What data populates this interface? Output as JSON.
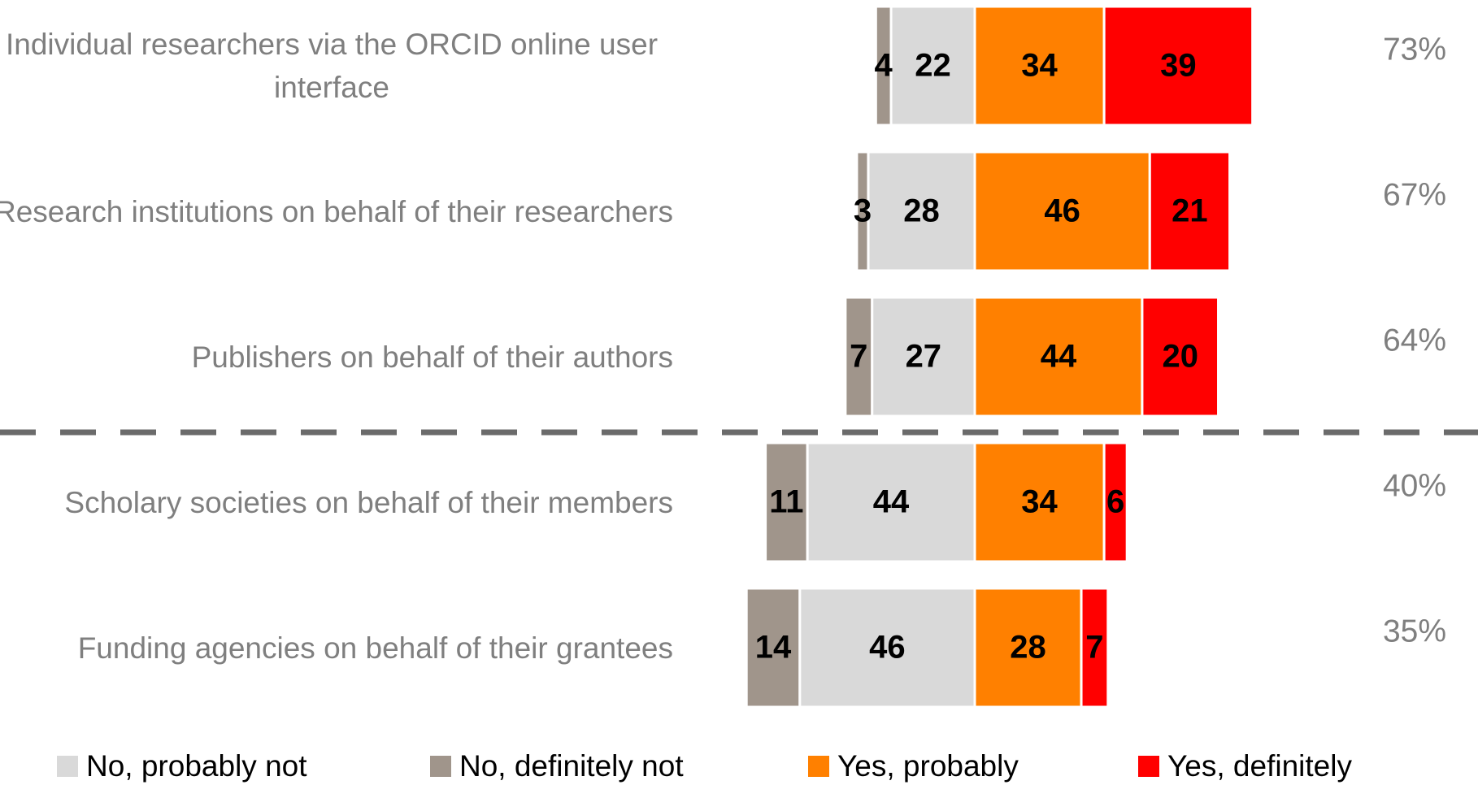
{
  "chart_data": {
    "type": "diverging-bar",
    "categories": [
      "Individual researchers via the ORCID online user interface",
      "Research institutions  on behalf of their researchers",
      "Publishers on behalf of their authors",
      "Scholary societies on behalf of their members",
      "Funding agencies on behalf of their grantees"
    ],
    "series": [
      {
        "name": "No, probably not",
        "color": "#d9d9d9",
        "values": [
          22,
          28,
          27,
          44,
          46
        ]
      },
      {
        "name": "No, definitely not",
        "color": "#a0958b",
        "values": [
          4,
          3,
          7,
          11,
          14
        ]
      },
      {
        "name": "Yes, probably",
        "color": "#ff8000",
        "values": [
          34,
          46,
          44,
          34,
          28
        ]
      },
      {
        "name": "Yes, definitely",
        "color": "#ff0000",
        "values": [
          39,
          21,
          20,
          6,
          7
        ]
      }
    ],
    "totals": {
      "values": [
        73,
        67,
        64,
        40,
        35
      ],
      "value_labels": [
        "73%",
        "67%",
        "64%",
        "40%",
        "35%"
      ]
    }
  }
}
